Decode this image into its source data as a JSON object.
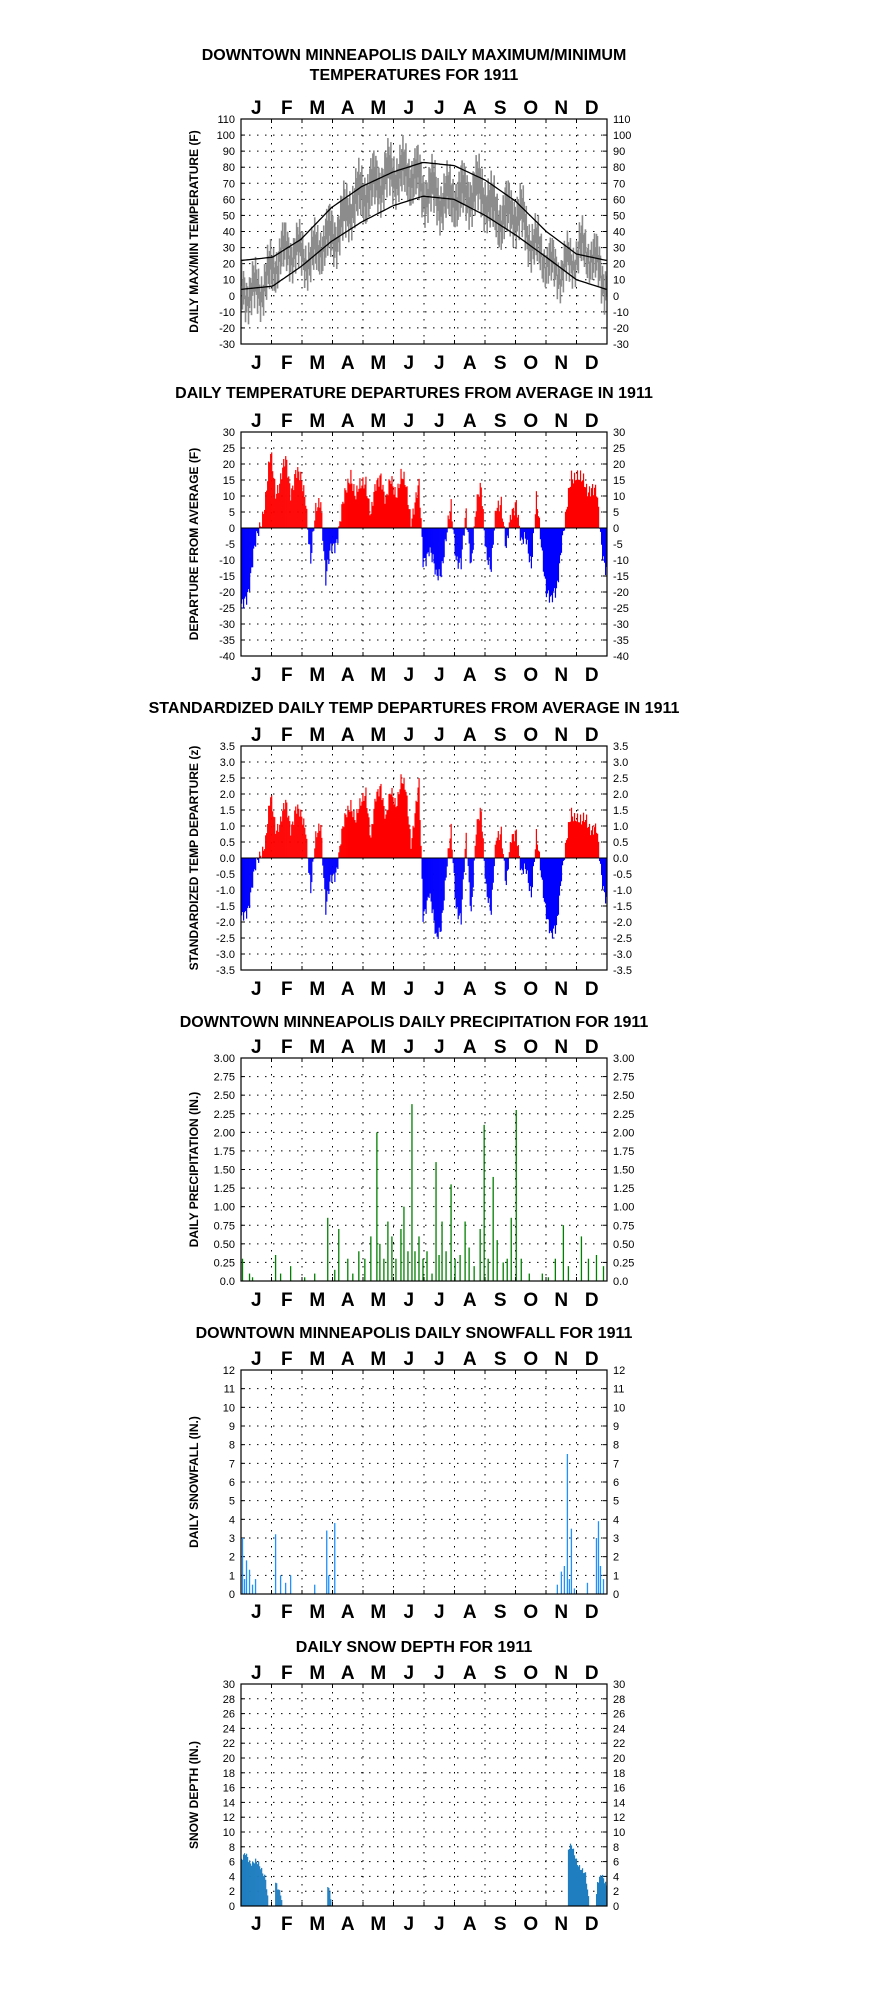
{
  "months": [
    "J",
    "F",
    "M",
    "A",
    "M",
    "J",
    "J",
    "A",
    "S",
    "O",
    "N",
    "D"
  ],
  "colors": {
    "gray": "#8c8c8c",
    "red": "#ff0000",
    "blue": "#0000ff",
    "green": "#008000",
    "snow": "#1e90ff",
    "depth": "#1f7ec0",
    "grid": "#000000"
  },
  "chart_data": [
    {
      "id": "temp",
      "type": "line",
      "title": [
        "DOWNTOWN MINNEAPOLIS DAILY MAXIMUM/MINIMUM",
        "TEMPERATURES FOR 1911"
      ],
      "ylabel": "DAILY MAX/MIN TEMPERATURE (F)",
      "ylim": [
        -30,
        110
      ],
      "yticks": [
        "-30",
        "-20",
        "-10",
        "0",
        "10",
        "20",
        "30",
        "40",
        "50",
        "60",
        "70",
        "80",
        "90",
        "100",
        "110"
      ],
      "series": [
        {
          "role": "normal_high",
          "anchors": [
            [
              1,
              22
            ],
            [
              32,
              24
            ],
            [
              60,
              35
            ],
            [
              91,
              55
            ],
            [
              121,
              68
            ],
            [
              152,
              77
            ],
            [
              182,
              83
            ],
            [
              213,
              81
            ],
            [
              244,
              72
            ],
            [
              274,
              59
            ],
            [
              305,
              40
            ],
            [
              335,
              26
            ],
            [
              365,
              22
            ]
          ]
        },
        {
          "role": "normal_low",
          "anchors": [
            [
              1,
              4
            ],
            [
              32,
              6
            ],
            [
              60,
              18
            ],
            [
              91,
              34
            ],
            [
              121,
              46
            ],
            [
              152,
              56
            ],
            [
              182,
              62
            ],
            [
              213,
              60
            ],
            [
              244,
              50
            ],
            [
              274,
              38
            ],
            [
              305,
              24
            ],
            [
              335,
              10
            ],
            [
              365,
              4
            ]
          ]
        }
      ],
      "anomaly_anchors": [
        [
          1,
          -8
        ],
        [
          10,
          -12
        ],
        [
          20,
          -10
        ],
        [
          40,
          8
        ],
        [
          55,
          4
        ],
        [
          70,
          -10
        ],
        [
          80,
          -6
        ],
        [
          95,
          -8
        ],
        [
          110,
          4
        ],
        [
          120,
          6
        ],
        [
          135,
          8
        ],
        [
          150,
          10
        ],
        [
          160,
          8
        ],
        [
          175,
          4
        ],
        [
          182,
          -8
        ],
        [
          190,
          -6
        ],
        [
          200,
          -12
        ],
        [
          215,
          -8
        ],
        [
          225,
          -4
        ],
        [
          240,
          4
        ],
        [
          250,
          -4
        ],
        [
          260,
          -6
        ],
        [
          270,
          2
        ],
        [
          280,
          4
        ],
        [
          290,
          -6
        ],
        [
          300,
          -8
        ],
        [
          310,
          -12
        ],
        [
          320,
          -10
        ],
        [
          330,
          2
        ],
        [
          340,
          12
        ],
        [
          350,
          10
        ],
        [
          365,
          -6
        ]
      ]
    },
    {
      "id": "depart",
      "type": "bar",
      "title": [
        "DAILY TEMPERATURE DEPARTURES FROM AVERAGE IN 1911"
      ],
      "ylabel": "DEPARTURE FROM AVERAGE (F)",
      "ylim": [
        -40,
        30
      ],
      "yticks": [
        "-40",
        "-35",
        "-30",
        "-25",
        "-20",
        "-15",
        "-10",
        "-5",
        "0",
        "5",
        "10",
        "15",
        "20",
        "25",
        "30"
      ],
      "pos_color": "red",
      "neg_color": "blue",
      "anchors": [
        [
          1,
          -26
        ],
        [
          8,
          -18
        ],
        [
          15,
          -6
        ],
        [
          20,
          2
        ],
        [
          25,
          10
        ],
        [
          30,
          22
        ],
        [
          35,
          12
        ],
        [
          40,
          16
        ],
        [
          45,
          20
        ],
        [
          50,
          12
        ],
        [
          55,
          18
        ],
        [
          60,
          14
        ],
        [
          65,
          10
        ],
        [
          70,
          -10
        ],
        [
          75,
          4
        ],
        [
          80,
          10
        ],
        [
          85,
          -16
        ],
        [
          90,
          -8
        ],
        [
          95,
          -4
        ],
        [
          100,
          4
        ],
        [
          105,
          10
        ],
        [
          110,
          18
        ],
        [
          115,
          10
        ],
        [
          120,
          12
        ],
        [
          125,
          16
        ],
        [
          130,
          4
        ],
        [
          135,
          12
        ],
        [
          140,
          18
        ],
        [
          145,
          8
        ],
        [
          150,
          14
        ],
        [
          155,
          12
        ],
        [
          160,
          16
        ],
        [
          165,
          12
        ],
        [
          170,
          4
        ],
        [
          178,
          12
        ],
        [
          182,
          -10
        ],
        [
          188,
          -6
        ],
        [
          195,
          -16
        ],
        [
          200,
          -12
        ],
        [
          205,
          -4
        ],
        [
          210,
          6
        ],
        [
          215,
          -8
        ],
        [
          220,
          -12
        ],
        [
          225,
          4
        ],
        [
          230,
          -10
        ],
        [
          235,
          6
        ],
        [
          240,
          12
        ],
        [
          245,
          -6
        ],
        [
          250,
          -14
        ],
        [
          255,
          6
        ],
        [
          260,
          10
        ],
        [
          265,
          -8
        ],
        [
          270,
          4
        ],
        [
          275,
          10
        ],
        [
          280,
          -6
        ],
        [
          285,
          -4
        ],
        [
          290,
          -10
        ],
        [
          295,
          8
        ],
        [
          300,
          -6
        ],
        [
          305,
          -18
        ],
        [
          310,
          -24
        ],
        [
          315,
          -20
        ],
        [
          320,
          -4
        ],
        [
          325,
          4
        ],
        [
          330,
          16
        ],
        [
          335,
          18
        ],
        [
          340,
          14
        ],
        [
          345,
          12
        ],
        [
          350,
          14
        ],
        [
          355,
          10
        ],
        [
          360,
          -6
        ],
        [
          365,
          -12
        ]
      ]
    },
    {
      "id": "zscore",
      "type": "bar",
      "title": [
        "STANDARDIZED DAILY TEMP DEPARTURES FROM AVERAGE IN 1911"
      ],
      "ylabel": "STANDARDIZED TEMP DEPARTURE (z)",
      "ylim": [
        -3.5,
        3.5
      ],
      "yticks": [
        "-3.5",
        "-3.0",
        "-2.5",
        "-2.0",
        "-1.5",
        "-1.0",
        "-0.5",
        "0.0",
        "0.5",
        "1.0",
        "1.5",
        "2.0",
        "2.5",
        "3.0",
        "3.5"
      ],
      "pos_color": "red",
      "neg_color": "blue",
      "anchors": [
        [
          1,
          -2.0
        ],
        [
          8,
          -1.4
        ],
        [
          15,
          -0.4
        ],
        [
          20,
          0.2
        ],
        [
          25,
          0.6
        ],
        [
          30,
          1.8
        ],
        [
          35,
          1.0
        ],
        [
          40,
          1.2
        ],
        [
          45,
          1.6
        ],
        [
          50,
          1.0
        ],
        [
          55,
          1.6
        ],
        [
          60,
          1.2
        ],
        [
          65,
          1.0
        ],
        [
          70,
          -1.0
        ],
        [
          75,
          0.5
        ],
        [
          80,
          1.2
        ],
        [
          85,
          -1.6
        ],
        [
          90,
          -0.8
        ],
        [
          95,
          -0.4
        ],
        [
          100,
          0.6
        ],
        [
          105,
          1.2
        ],
        [
          110,
          1.8
        ],
        [
          115,
          1.2
        ],
        [
          120,
          1.6
        ],
        [
          125,
          2.2
        ],
        [
          130,
          0.6
        ],
        [
          135,
          1.8
        ],
        [
          140,
          2.4
        ],
        [
          145,
          1.2
        ],
        [
          150,
          2.0
        ],
        [
          155,
          1.8
        ],
        [
          160,
          2.4
        ],
        [
          165,
          2.0
        ],
        [
          170,
          0.6
        ],
        [
          178,
          2.2
        ],
        [
          182,
          -1.8
        ],
        [
          188,
          -1.0
        ],
        [
          195,
          -2.6
        ],
        [
          200,
          -2.0
        ],
        [
          205,
          -0.6
        ],
        [
          210,
          0.8
        ],
        [
          215,
          -1.4
        ],
        [
          220,
          -2.0
        ],
        [
          225,
          0.6
        ],
        [
          230,
          -1.6
        ],
        [
          235,
          0.8
        ],
        [
          240,
          1.4
        ],
        [
          245,
          -0.8
        ],
        [
          250,
          -1.8
        ],
        [
          255,
          0.6
        ],
        [
          260,
          1.0
        ],
        [
          265,
          -1.0
        ],
        [
          270,
          0.6
        ],
        [
          275,
          1.0
        ],
        [
          280,
          -0.6
        ],
        [
          285,
          -0.4
        ],
        [
          290,
          -1.0
        ],
        [
          295,
          0.6
        ],
        [
          300,
          -0.6
        ],
        [
          305,
          -1.6
        ],
        [
          310,
          -2.6
        ],
        [
          315,
          -2.2
        ],
        [
          320,
          -0.4
        ],
        [
          325,
          0.4
        ],
        [
          330,
          1.4
        ],
        [
          335,
          1.4
        ],
        [
          340,
          1.0
        ],
        [
          345,
          1.2
        ],
        [
          350,
          1.0
        ],
        [
          355,
          0.8
        ],
        [
          360,
          -0.6
        ],
        [
          365,
          -1.2
        ]
      ]
    },
    {
      "id": "precip",
      "type": "bar",
      "title": [
        "DOWNTOWN MINNEAPOLIS DAILY PRECIPITATION FOR 1911"
      ],
      "ylabel": "DAILY PRECIPITATION (IN.)",
      "ylim": [
        0,
        3
      ],
      "yticks": [
        "0.0",
        "0.25",
        "0.50",
        "0.75",
        "1.00",
        "1.25",
        "1.50",
        "1.75",
        "2.00",
        "2.25",
        "2.50",
        "2.75",
        "3.00"
      ],
      "color": "green",
      "events": [
        [
          2,
          0.3
        ],
        [
          9,
          0.1
        ],
        [
          12,
          0.05
        ],
        [
          35,
          0.35
        ],
        [
          40,
          0.1
        ],
        [
          50,
          0.2
        ],
        [
          64,
          0.05
        ],
        [
          74,
          0.1
        ],
        [
          87,
          0.85
        ],
        [
          94,
          0.15
        ],
        [
          98,
          0.7
        ],
        [
          107,
          0.3
        ],
        [
          112,
          0.1
        ],
        [
          118,
          0.4
        ],
        [
          124,
          0.3
        ],
        [
          130,
          0.6
        ],
        [
          136,
          2.0
        ],
        [
          139,
          0.5
        ],
        [
          143,
          0.3
        ],
        [
          147,
          0.8
        ],
        [
          151,
          0.6
        ],
        [
          155,
          0.3
        ],
        [
          160,
          0.7
        ],
        [
          163,
          1.0
        ],
        [
          167,
          0.4
        ],
        [
          171,
          2.38
        ],
        [
          174,
          0.4
        ],
        [
          178,
          0.6
        ],
        [
          182,
          0.3
        ],
        [
          186,
          0.4
        ],
        [
          191,
          0.1
        ],
        [
          195,
          1.6
        ],
        [
          198,
          0.35
        ],
        [
          201,
          0.8
        ],
        [
          205,
          0.4
        ],
        [
          210,
          1.3
        ],
        [
          214,
          0.3
        ],
        [
          219,
          0.35
        ],
        [
          224,
          0.8
        ],
        [
          228,
          0.45
        ],
        [
          233,
          0.2
        ],
        [
          239,
          0.7
        ],
        [
          243,
          2.1
        ],
        [
          247,
          0.3
        ],
        [
          252,
          1.4
        ],
        [
          256,
          0.55
        ],
        [
          262,
          0.25
        ],
        [
          266,
          0.3
        ],
        [
          270,
          0.85
        ],
        [
          275,
          2.3
        ],
        [
          280,
          0.3
        ],
        [
          288,
          0.1
        ],
        [
          301,
          0.1
        ],
        [
          307,
          0.05
        ],
        [
          314,
          0.3
        ],
        [
          322,
          0.75
        ],
        [
          327,
          0.2
        ],
        [
          340,
          0.6
        ],
        [
          347,
          0.3
        ],
        [
          355,
          0.35
        ],
        [
          362,
          0.2
        ]
      ]
    },
    {
      "id": "snow",
      "type": "bar",
      "title": [
        "DOWNTOWN MINNEAPOLIS DAILY SNOWFALL FOR 1911"
      ],
      "ylabel": "DAILY SNOWFALL (IN.)",
      "ylim": [
        0,
        12
      ],
      "yticks": [
        "0",
        "1",
        "2",
        "3",
        "4",
        "5",
        "6",
        "7",
        "8",
        "9",
        "10",
        "11",
        "12"
      ],
      "color": "snow",
      "events": [
        [
          2,
          3.0
        ],
        [
          4,
          0.8
        ],
        [
          6,
          1.8
        ],
        [
          9,
          1.3
        ],
        [
          12,
          0.5
        ],
        [
          15,
          0.8
        ],
        [
          35,
          3.2
        ],
        [
          40,
          1.0
        ],
        [
          45,
          0.6
        ],
        [
          50,
          1.0
        ],
        [
          74,
          0.5
        ],
        [
          86,
          3.4
        ],
        [
          88,
          1.0
        ],
        [
          94,
          3.8
        ],
        [
          316,
          0.5
        ],
        [
          320,
          1.2
        ],
        [
          323,
          1.5
        ],
        [
          326,
          7.5
        ],
        [
          328,
          0.8
        ],
        [
          330,
          3.5
        ],
        [
          333,
          0.3
        ],
        [
          346,
          0.6
        ],
        [
          355,
          3.0
        ],
        [
          357,
          3.9
        ],
        [
          359,
          1.5
        ],
        [
          362,
          0.8
        ]
      ]
    },
    {
      "id": "depth",
      "type": "area",
      "title": [
        "DAILY SNOW DEPTH FOR 1911"
      ],
      "ylabel": "SNOW DEPTH (IN.)",
      "ylim": [
        0,
        30
      ],
      "yticks": [
        "0",
        "2",
        "4",
        "6",
        "8",
        "10",
        "12",
        "14",
        "16",
        "18",
        "20",
        "22",
        "24",
        "26",
        "28",
        "30"
      ],
      "color": "depth",
      "anchors": [
        [
          1,
          6
        ],
        [
          5,
          7
        ],
        [
          10,
          6
        ],
        [
          15,
          6
        ],
        [
          20,
          5
        ],
        [
          25,
          4
        ],
        [
          28,
          0
        ],
        [
          34,
          0
        ],
        [
          35,
          3
        ],
        [
          40,
          2
        ],
        [
          42,
          0
        ],
        [
          86,
          0
        ],
        [
          87,
          3
        ],
        [
          90,
          1
        ],
        [
          91,
          0
        ],
        [
          326,
          0
        ],
        [
          327,
          7.5
        ],
        [
          330,
          8
        ],
        [
          333,
          7
        ],
        [
          336,
          6
        ],
        [
          340,
          5
        ],
        [
          344,
          4
        ],
        [
          346,
          2
        ],
        [
          348,
          0
        ],
        [
          354,
          0
        ],
        [
          356,
          3
        ],
        [
          360,
          4
        ],
        [
          365,
          3
        ]
      ]
    }
  ]
}
